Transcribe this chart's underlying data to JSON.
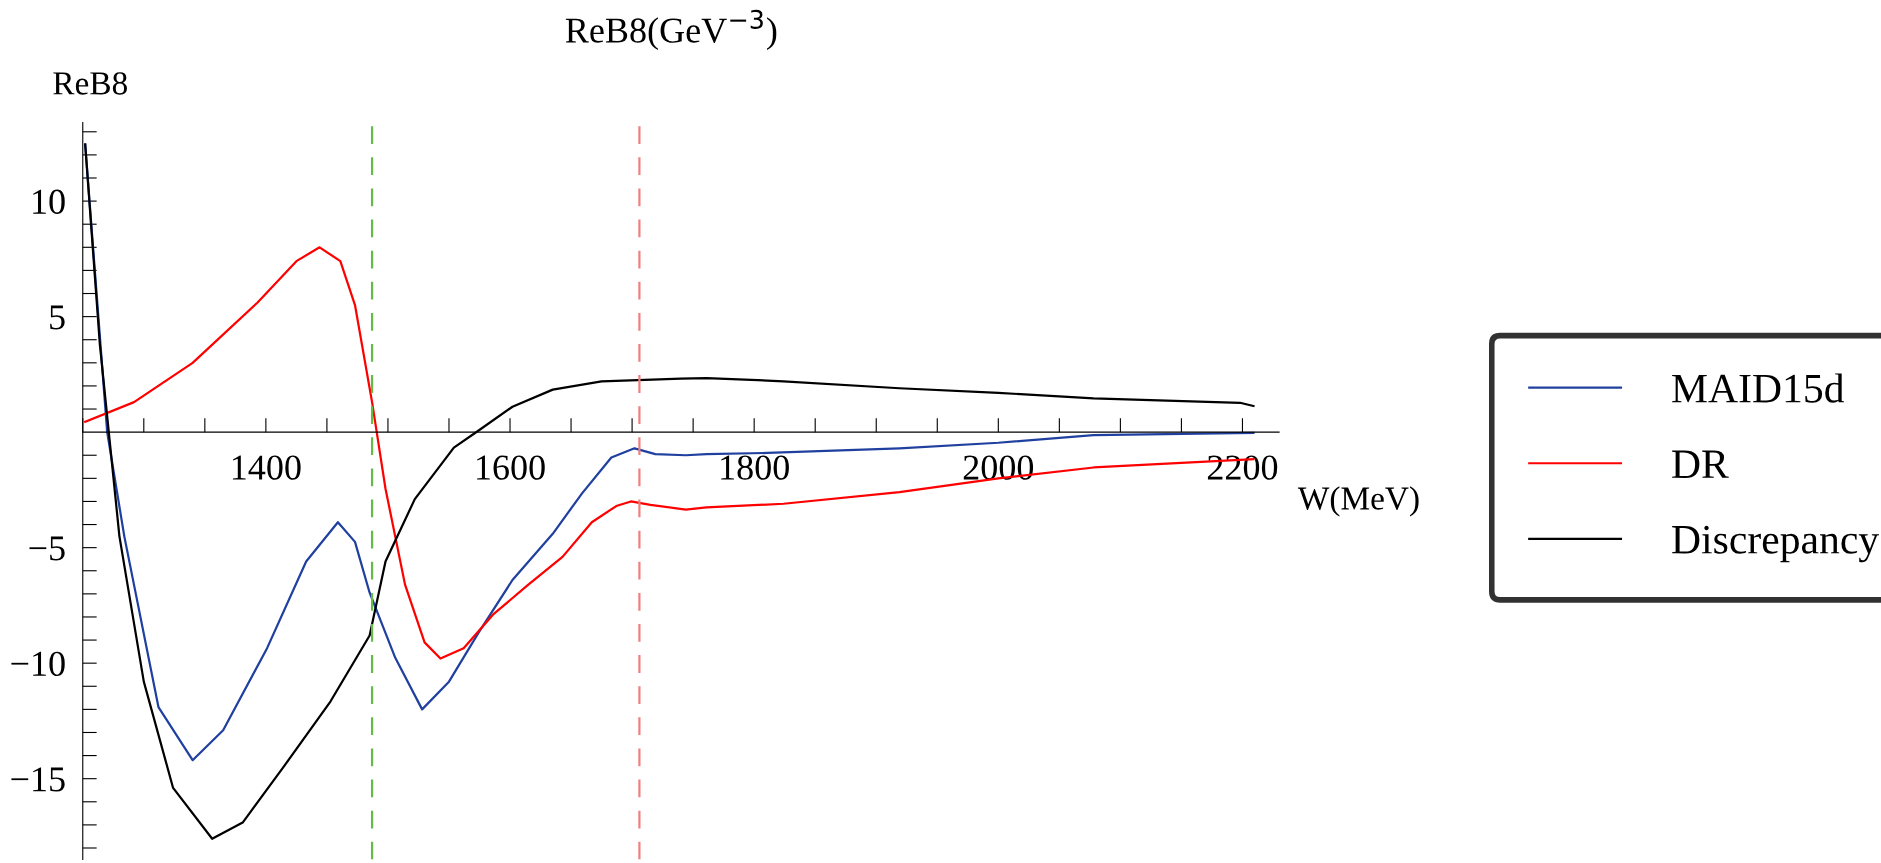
{
  "chart_data": {
    "type": "line",
    "title": "ReB8(GeV$^{−3}$)",
    "xlabel": "W(MeV)",
    "ylabel": "ReB8",
    "xlim": [
      1250,
      2230
    ],
    "ylim": [
      -18.5,
      13.4
    ],
    "xticks": [
      {
        "value": 1250,
        "label": null
      },
      {
        "value": 1300,
        "label": null
      },
      {
        "value": 1350,
        "label": null
      },
      1400,
      {
        "value": 1450,
        "label": null
      },
      {
        "value": 1500,
        "label": null
      },
      {
        "value": 1550,
        "label": null
      },
      1600,
      {
        "value": 1650,
        "label": null
      },
      {
        "value": 1700,
        "label": null
      },
      {
        "value": 1750,
        "label": null
      },
      1800,
      {
        "value": 1850,
        "label": null
      },
      {
        "value": 1900,
        "label": null
      },
      {
        "value": 1950,
        "label": null
      },
      2000,
      {
        "value": 2050,
        "label": null
      },
      {
        "value": 2100,
        "label": null
      },
      {
        "value": 2150,
        "label": null
      },
      2200
    ],
    "yticks": [
      {
        "value": -18,
        "label": null
      },
      {
        "value": -17,
        "label": null
      },
      {
        "value": -16,
        "label": null
      },
      {
        "value": -15,
        "label": "−15"
      },
      {
        "value": -14,
        "label": null
      },
      {
        "value": -13,
        "label": null
      },
      {
        "value": -12,
        "label": null
      },
      {
        "value": -11,
        "label": null
      },
      {
        "value": -10,
        "label": "−10"
      },
      {
        "value": -9,
        "label": null
      },
      {
        "value": -8,
        "label": null
      },
      {
        "value": -7,
        "label": null
      },
      {
        "value": -6,
        "label": null
      },
      {
        "value": -5,
        "label": "−5"
      },
      {
        "value": -4,
        "label": null
      },
      {
        "value": -3,
        "label": null
      },
      {
        "value": -2,
        "label": null
      },
      {
        "value": -1,
        "label": null
      },
      {
        "value": 1,
        "label": null
      },
      {
        "value": 2,
        "label": null
      },
      {
        "value": 3,
        "label": null
      },
      {
        "value": 4,
        "label": null
      },
      5,
      {
        "value": 6,
        "label": null
      },
      {
        "value": 7,
        "label": null
      },
      {
        "value": 8,
        "label": null
      },
      {
        "value": 9,
        "label": null
      },
      10,
      {
        "value": 11,
        "label": null
      },
      {
        "value": 12,
        "label": null
      },
      {
        "value": 13,
        "label": null
      }
    ],
    "grid": false,
    "legend": "right",
    "marker": "none",
    "line_style": "solid",
    "ref_lines": [
      {
        "axis": "x",
        "value": 1487,
        "color": "#66bb44",
        "line_style": "dashed"
      },
      {
        "axis": "x",
        "value": 1706,
        "color": "#f08080",
        "line_style": "dashed"
      }
    ],
    "series": [
      {
        "name": "MAID15d",
        "color": "#2040a0",
        "x": [
          1252,
          1270,
          1284,
          1312,
          1340,
          1365,
          1401,
          1433,
          1459,
          1473,
          1485,
          1506,
          1528,
          1550,
          1574,
          1602,
          1635,
          1659,
          1683,
          1702,
          1719,
          1744,
          1761,
          1811,
          1919,
          2000,
          2078,
          2209
        ],
        "values": [
          12.45,
          0,
          -4.5,
          -11.9,
          -14.2,
          -12.9,
          -9.35,
          -5.6,
          -3.9,
          -4.75,
          -6.95,
          -9.77,
          -12.0,
          -10.8,
          -8.7,
          -6.4,
          -4.4,
          -2.65,
          -1.1,
          -0.7,
          -0.95,
          -1.0,
          -0.95,
          -0.9,
          -0.7,
          -0.46,
          -0.13,
          -0.03
        ]
      },
      {
        "name": "DR",
        "color": "#ff0000",
        "x": [
          1252,
          1292,
          1340,
          1393,
          1425,
          1444,
          1461,
          1473,
          1487,
          1498,
          1514,
          1530,
          1543,
          1562,
          1586,
          1615,
          1643,
          1667,
          1687,
          1699,
          1715,
          1744,
          1761,
          1824,
          1919,
          2000,
          2078,
          2209
        ],
        "values": [
          0.45,
          1.3,
          3.0,
          5.6,
          7.4,
          8.0,
          7.4,
          5.5,
          1.3,
          -2.45,
          -6.6,
          -9.1,
          -9.8,
          -9.35,
          -7.9,
          -6.6,
          -5.4,
          -3.9,
          -3.2,
          -3.0,
          -3.15,
          -3.35,
          -3.26,
          -3.1,
          -2.6,
          -2.0,
          -1.53,
          -1.17
        ]
      },
      {
        "name": "Discrepancy",
        "color": "#000000",
        "x": [
          1252,
          1264,
          1280,
          1300,
          1324,
          1356,
          1381,
          1413,
          1453,
          1485,
          1498,
          1522,
          1554,
          1574,
          1602,
          1635,
          1675,
          1740,
          1761,
          1824,
          1919,
          2000,
          2078,
          2198,
          2209
        ],
        "values": [
          12.45,
          3.8,
          -4.5,
          -10.8,
          -15.4,
          -17.6,
          -16.9,
          -14.6,
          -11.65,
          -8.8,
          -5.6,
          -2.9,
          -0.67,
          0.06,
          1.1,
          1.84,
          2.2,
          2.32,
          2.34,
          2.2,
          1.9,
          1.7,
          1.46,
          1.27,
          1.13
        ]
      }
    ]
  }
}
